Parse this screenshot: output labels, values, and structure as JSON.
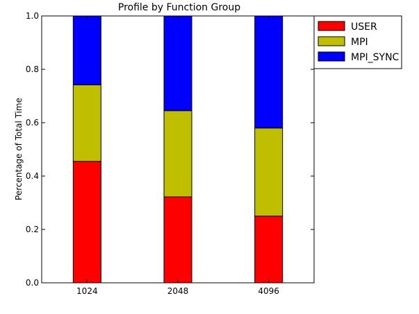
{
  "chart_data": {
    "type": "bar",
    "stacked": true,
    "title": "Profile by Function Group",
    "xlabel": "",
    "ylabel": "Percentage of Total Time",
    "categories": [
      "1024",
      "2048",
      "4096"
    ],
    "ylim": [
      0.0,
      1.0
    ],
    "yticks": [
      "0.0",
      "0.2",
      "0.4",
      "0.6",
      "0.8",
      "1.0"
    ],
    "grid": false,
    "legend_position": "outside-top-right",
    "series": [
      {
        "name": "USER",
        "color": "#ff0000",
        "values": [
          0.455,
          0.322,
          0.25
        ]
      },
      {
        "name": "MPI",
        "color": "#bfbf00",
        "values": [
          0.287,
          0.323,
          0.33
        ]
      },
      {
        "name": "MPI_SYNC",
        "color": "#0000ff",
        "values": [
          0.258,
          0.355,
          0.42
        ]
      }
    ]
  }
}
